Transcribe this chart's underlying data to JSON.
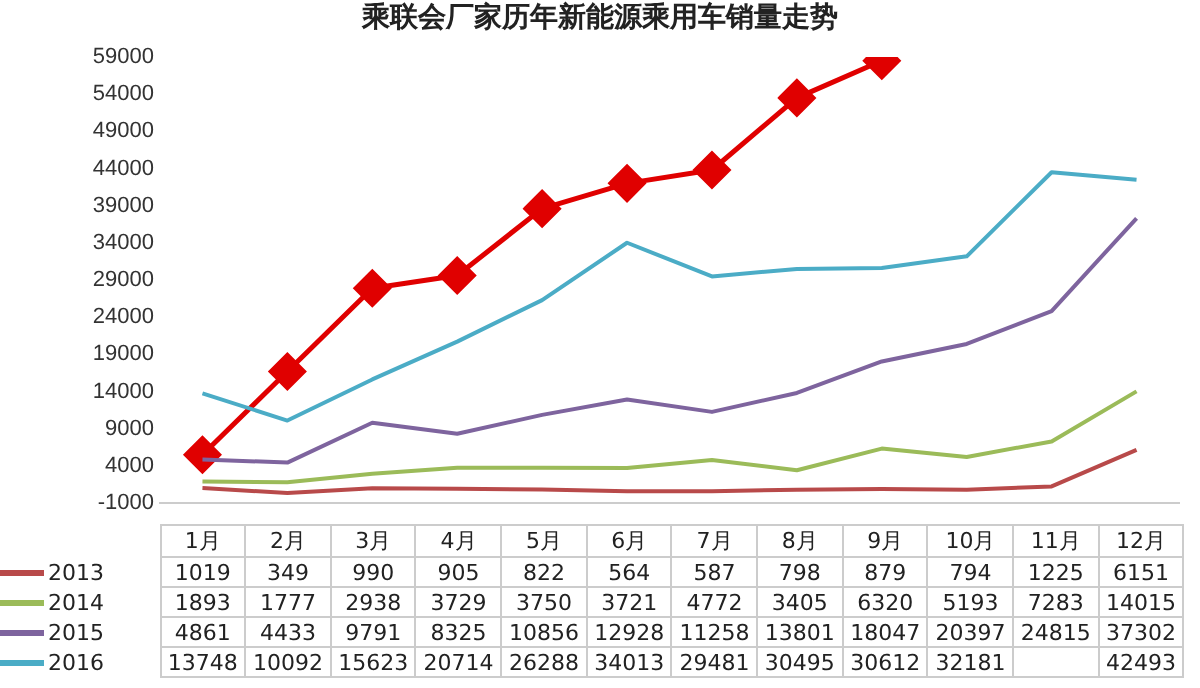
{
  "chart_data": {
    "type": "line",
    "title": "乘联会厂家历年新能源乘用车销量走势",
    "categories": [
      "1月",
      "2月",
      "3月",
      "4月",
      "5月",
      "6月",
      "7月",
      "8月",
      "9月",
      "10月",
      "11月",
      "12月"
    ],
    "ylim": [
      -1000,
      59000
    ],
    "yticks": [
      -1000,
      4000,
      9000,
      14000,
      19000,
      24000,
      29000,
      34000,
      39000,
      44000,
      49000,
      54000,
      59000
    ],
    "grid": false,
    "legend": "bottom left",
    "marker": "none",
    "line_style": "solid",
    "series": [
      {
        "name": "2013",
        "color": "#b84a4a",
        "values": [
          1019,
          349,
          990,
          905,
          822,
          564,
          587,
          798,
          879,
          794,
          1225,
          6151
        ],
        "value_labels": [
          "1019",
          "349",
          "990",
          "905",
          "822",
          "564",
          "587",
          "798",
          "879",
          "794",
          "1225",
          "6151"
        ]
      },
      {
        "name": "2014",
        "color": "#9bbb59",
        "values": [
          1893,
          1777,
          2938,
          3729,
          3750,
          3721,
          4772,
          3405,
          6320,
          5193,
          7283,
          14015
        ],
        "value_labels": [
          "1893",
          "1777",
          "2938",
          "3729",
          "3750",
          "3721",
          "4772",
          "3405",
          "6320",
          "5193",
          "7283",
          "14015"
        ]
      },
      {
        "name": "2015",
        "color": "#7e649e",
        "values": [
          4861,
          4433,
          9791,
          8325,
          10856,
          12928,
          11258,
          13801,
          18047,
          20397,
          24815,
          37302
        ],
        "value_labels": [
          "4861",
          "4433",
          "9791",
          "8325",
          "10856",
          "12928",
          "11258",
          "13801",
          "18047",
          "20397",
          "24815",
          "37302"
        ]
      },
      {
        "name": "2016",
        "color": "#4bacc6",
        "values": [
          13748,
          10092,
          15623,
          20714,
          26288,
          34013,
          29481,
          30495,
          30612,
          32181,
          43500,
          42493
        ],
        "value_labels": [
          "13748",
          "10092",
          "15623",
          "20714",
          "26288",
          "34013",
          "29481",
          "30495",
          "30612",
          "32181",
          null,
          "42493"
        ]
      },
      {
        "color": "#e00000",
        "marker": "diamond",
        "values": [
          5500,
          16700,
          27900,
          29600,
          38600,
          42000,
          43800,
          53500,
          58500,
          null,
          null,
          null
        ]
      }
    ]
  }
}
